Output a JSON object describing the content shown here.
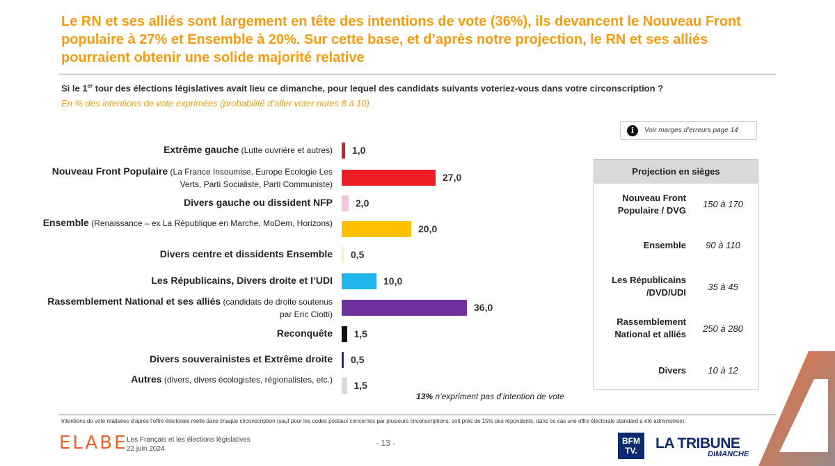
{
  "title": "Le RN et ses alliés sont largement en tête des intentions de vote (36%), ils devancent le Nouveau Front populaire à 27% et Ensemble à 20%. Sur cette base, et d’après notre projection, le RN et ses alliés pourraient obtenir une solide majorité relative",
  "question_pre": "Si le 1",
  "question_sup": "er",
  "question_post": " tour des élections législatives avait lieu ce dimanche, pour lequel des candidats suivants voteriez-vous dans votre circonscription ?",
  "subtitle": "En % des intentions de vote exprimées (probabilité d’aller voter notes 8 à 10)",
  "margin_note": "Voir marges d’erreurs page 14",
  "no_intention": {
    "pct": "13%",
    "text": " n’expriment pas d’intention de vote"
  },
  "chart_data": {
    "type": "bar",
    "orientation": "horizontal",
    "categories": [
      {
        "label": "Extrême gauche",
        "detail": " (Lutte ouvrière et autres)",
        "value": 1.0,
        "value_label": "1,0",
        "color": "#c0282d"
      },
      {
        "label": "Nouveau Front Populaire",
        "detail": " (La France Insoumise, Europe Ecologie Les Verts, Parti Socialiste, Parti Communiste)",
        "value": 27.0,
        "value_label": "27,0",
        "color": "#ee1c25"
      },
      {
        "label": "Divers gauche ou dissident NFP",
        "detail": "",
        "value": 2.0,
        "value_label": "2,0",
        "color": "#f2c7df"
      },
      {
        "label": "Ensemble",
        "detail": " (Renaissance – ex La République en Marche, MoDem, Horizons)",
        "value": 20.0,
        "value_label": "20,0",
        "color": "#ffc000"
      },
      {
        "label": "Divers centre et dissidents Ensemble",
        "detail": "",
        "value": 0.5,
        "value_label": "0,5",
        "color": "#fbeec5"
      },
      {
        "label": "Les Républicains, Divers droite et l’UDI",
        "detail": "",
        "value": 10.0,
        "value_label": "10,0",
        "color": "#1eb4ec"
      },
      {
        "label": "Rassemblement National et ses alliés",
        "detail": " (candidats de droite soutenus par Eric Ciotti)",
        "value": 36.0,
        "value_label": "36,0",
        "color": "#7030a0"
      },
      {
        "label": "Reconquête",
        "detail": "",
        "value": 1.5,
        "value_label": "1,5",
        "color": "#111111"
      },
      {
        "label": "Divers souverainistes et Extrême droite",
        "detail": "",
        "value": 0.5,
        "value_label": "0,5",
        "color": "#1f3864"
      },
      {
        "label": "Autres",
        "detail": " (divers, divers écologistes, régionalistes, etc.)",
        "value": 1.5,
        "value_label": "1,5",
        "color": "#d9d9d9"
      }
    ]
  },
  "projection": {
    "header": "Projection en sièges",
    "rows": [
      {
        "name": "Nouveau Front Populaire / DVG",
        "range": "150 à 170"
      },
      {
        "name": "Ensemble",
        "range": "90 à 110"
      },
      {
        "name": "Les Républicains /DVD/UDI",
        "range": "35 à 45"
      },
      {
        "name": "Rassemblement National et alliés",
        "range": "250 à 280"
      },
      {
        "name": "Divers",
        "range": "10 à 12"
      }
    ]
  },
  "footnote": "Intentions de vote réalisées d’après l’offre électorale réelle dans chaque circonscription (sauf pour les codes postaux concernés par plusieurs circonscriptions, soit près de 15% des répondants, dans ce cas une offre électorale standard a été administrée).",
  "footer": {
    "brand": "ELABE",
    "survey_title": "Les Français et les élections législatives",
    "survey_date": "22 juin 2024",
    "page": "- 13 -",
    "bfm_line1": "BFM",
    "bfm_line2": "TV.",
    "tribune": "LA TRIBUNE",
    "dimanche": "DIMANCHE"
  }
}
